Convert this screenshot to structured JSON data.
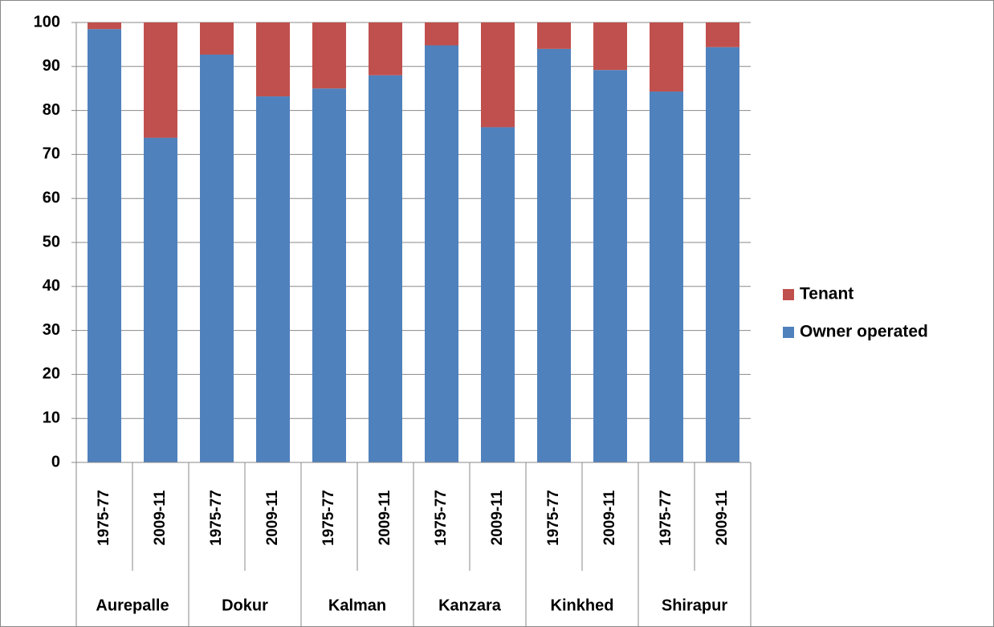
{
  "chart_data": {
    "type": "stacked_bar",
    "categories": [
      "1975-77",
      "2009-11",
      "1975-77",
      "2009-11",
      "1975-77",
      "2009-11",
      "1975-77",
      "2009-11",
      "1975-77",
      "2009-11",
      "1975-77",
      "2009-11"
    ],
    "groups": [
      "Aurepalle",
      "Dokur",
      "Kalman",
      "Kanzara",
      "Kinkhed",
      "Shirapur"
    ],
    "series": [
      {
        "name": "Owner operated",
        "color": "#4f81bd",
        "values": [
          98.5,
          73.8,
          92.7,
          83.2,
          85,
          88,
          94.8,
          76.2,
          94,
          89.2,
          84.3,
          94.4
        ]
      },
      {
        "name": "Tenant",
        "color": "#c0504d",
        "values": [
          1.5,
          26.2,
          7.3,
          16.8,
          15,
          12,
          5.2,
          23.8,
          6,
          10.8,
          15.7,
          5.6
        ]
      }
    ],
    "ylim": [
      0,
      100
    ],
    "yticks": [
      0,
      10,
      20,
      30,
      40,
      50,
      60,
      70,
      80,
      90,
      100
    ],
    "grid": true,
    "legend": "right"
  }
}
